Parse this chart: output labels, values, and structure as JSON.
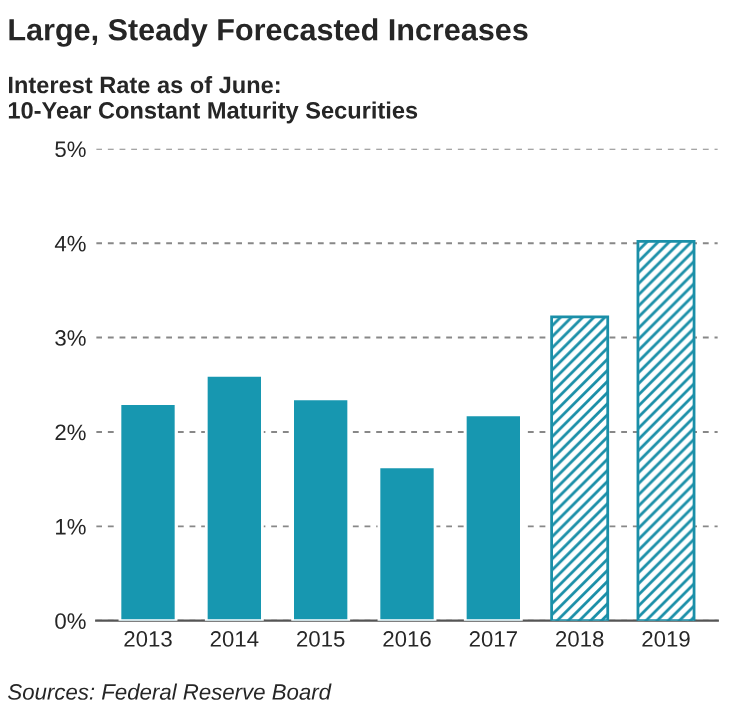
{
  "chart_data": {
    "type": "bar",
    "title": "Large, Steady Forecasted Increases",
    "subtitle": "Interest Rate as of June:\n10-Year Constant Maturity Securities",
    "categories": [
      "2013",
      "2014",
      "2015",
      "2016",
      "2017",
      "2018",
      "2019"
    ],
    "series": [
      {
        "color": "#1797b0",
        "values": [
          2.3,
          2.6,
          2.35,
          1.63,
          2.18,
          null,
          null
        ]
      },
      {
        "color": "#1a8fa8",
        "values": [
          null,
          null,
          null,
          null,
          null,
          3.22,
          4.02
        ]
      }
    ],
    "ylim": [
      0,
      5
    ],
    "yticks": [
      {
        "value": 0,
        "label": "0%"
      },
      {
        "value": 1,
        "label": "1%"
      },
      {
        "value": 2,
        "label": "2%"
      },
      {
        "value": 3,
        "label": "3%"
      },
      {
        "value": 4,
        "label": "4%"
      },
      {
        "value": 5,
        "label": "5%"
      }
    ],
    "grid": "y",
    "annotations": [
      "Sources: Federal Reserve Board"
    ]
  }
}
